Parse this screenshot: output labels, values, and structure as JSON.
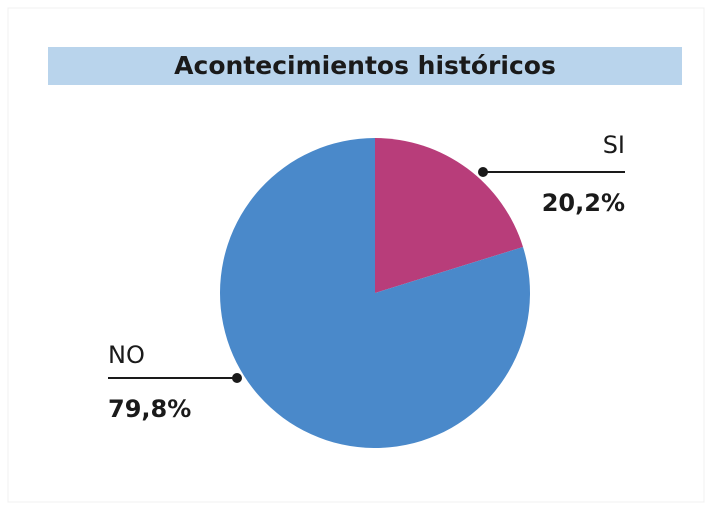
{
  "chart_data": {
    "type": "pie",
    "title": "Acontecimientos históricos",
    "categories": [
      "SI",
      "NO"
    ],
    "values": [
      20.2,
      79.8
    ],
    "value_labels": [
      "20,2%",
      "79,8%"
    ],
    "colors": [
      "#b83d7a",
      "#4a89ca"
    ]
  }
}
